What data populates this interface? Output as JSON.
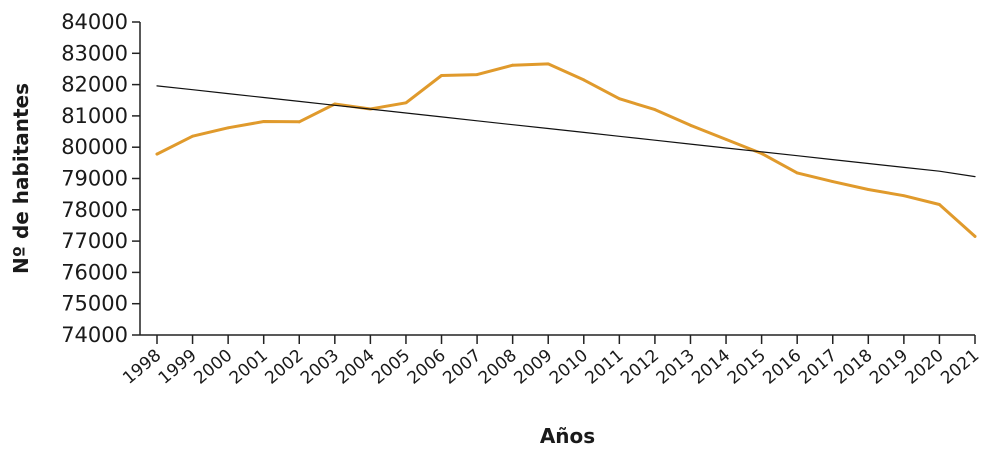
{
  "chart_data": {
    "type": "line",
    "title": "",
    "xlabel": "Años",
    "ylabel": "Nº de habitantes",
    "ylim": [
      74000,
      84000
    ],
    "y_ticks": [
      "74000",
      "75000",
      "76000",
      "77000",
      "78000",
      "79000",
      "80000",
      "81000",
      "82000",
      "83000",
      "84000"
    ],
    "categories": [
      "1998",
      "1999",
      "2000",
      "2001",
      "2002",
      "2003",
      "2004",
      "2005",
      "2006",
      "2007",
      "2008",
      "2009",
      "2010",
      "2011",
      "2012",
      "2013",
      "2014",
      "2015",
      "2016",
      "2017",
      "2018",
      "2019",
      "2020",
      "2021"
    ],
    "grid": false,
    "series": [
      {
        "color": "#e09a2c",
        "values": [
          79780,
          80350,
          80620,
          80820,
          80810,
          81380,
          81220,
          81420,
          82290,
          82320,
          82620,
          82660,
          82150,
          81550,
          81200,
          80700,
          80250,
          79800,
          79180,
          78900,
          78650,
          78450,
          78170,
          77150
        ]
      },
      {
        "type": "trendline",
        "color": "#111111",
        "values": [
          81960,
          81836,
          81712,
          81588,
          81464,
          81340,
          81216,
          81092,
          80968,
          80844,
          80720,
          80596,
          80472,
          80348,
          80224,
          80100,
          79976,
          79852,
          79728,
          79604,
          79480,
          79356,
          79232,
          79060
        ]
      }
    ]
  }
}
